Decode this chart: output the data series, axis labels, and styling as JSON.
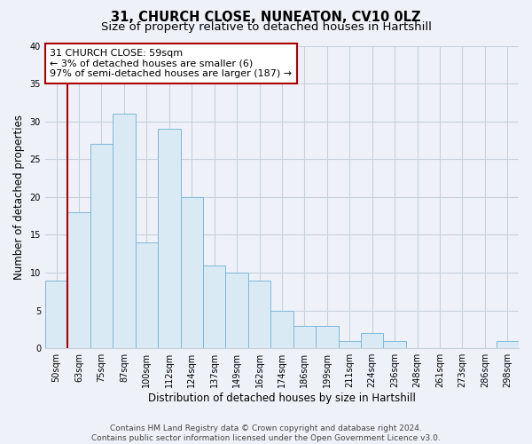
{
  "title": "31, CHURCH CLOSE, NUNEATON, CV10 0LZ",
  "subtitle": "Size of property relative to detached houses in Hartshill",
  "xlabel": "Distribution of detached houses by size in Hartshill",
  "ylabel": "Number of detached properties",
  "bar_labels": [
    "50sqm",
    "63sqm",
    "75sqm",
    "87sqm",
    "100sqm",
    "112sqm",
    "124sqm",
    "137sqm",
    "149sqm",
    "162sqm",
    "174sqm",
    "186sqm",
    "199sqm",
    "211sqm",
    "224sqm",
    "236sqm",
    "248sqm",
    "261sqm",
    "273sqm",
    "286sqm",
    "298sqm"
  ],
  "bar_heights": [
    9,
    18,
    27,
    31,
    14,
    29,
    20,
    11,
    10,
    9,
    5,
    3,
    3,
    1,
    2,
    1,
    0,
    0,
    0,
    0,
    1
  ],
  "bar_color": "#daeaf5",
  "bar_edge_color": "#7db8d8",
  "annotation_box_text": "31 CHURCH CLOSE: 59sqm\n← 3% of detached houses are smaller (6)\n97% of semi-detached houses are larger (187) →",
  "annotation_box_edge_color": "#aa0000",
  "annotation_box_bg": "#ffffff",
  "red_line_color": "#aa0000",
  "ylim": [
    0,
    40
  ],
  "yticks": [
    0,
    5,
    10,
    15,
    20,
    25,
    30,
    35,
    40
  ],
  "footer_line1": "Contains HM Land Registry data © Crown copyright and database right 2024.",
  "footer_line2": "Contains public sector information licensed under the Open Government Licence v3.0.",
  "bg_color": "#eef2f8",
  "plot_bg_color": "#eef2f8",
  "grid_color": "#c8d0dc",
  "title_fontsize": 10.5,
  "subtitle_fontsize": 9.5,
  "axis_label_fontsize": 8.5,
  "tick_fontsize": 7,
  "footer_fontsize": 6.5,
  "annotation_fontsize": 8
}
